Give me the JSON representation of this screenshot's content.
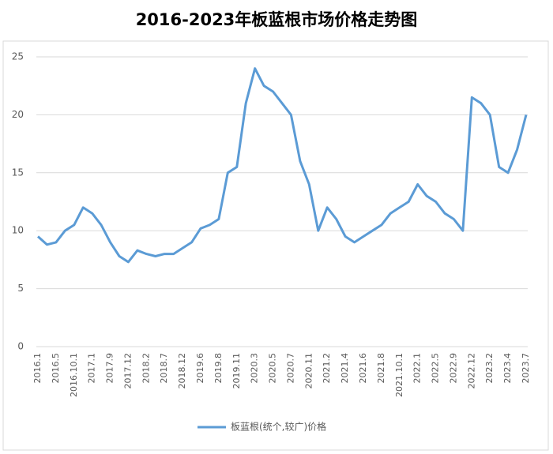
{
  "chart_data": {
    "type": "line",
    "title": "2016-2023年板蓝根市场价格走势图",
    "categories": [
      "2016.1",
      null,
      "2016.5",
      null,
      "2016.10.1",
      null,
      "2017.1",
      null,
      "2017.9",
      null,
      "2017.12",
      null,
      "2018.2",
      null,
      "2018.7",
      null,
      "2018.12",
      null,
      "2019.6",
      null,
      "2019.8",
      null,
      "2019.11",
      null,
      "2020.3",
      null,
      "2020.5",
      null,
      "2020.7",
      null,
      "2020.11",
      null,
      "2021.2",
      null,
      "2021.4",
      null,
      "2021.6",
      null,
      "2021.8",
      null,
      "2021.10.1",
      null,
      "2022.1",
      null,
      "2022.5",
      null,
      "2022.9",
      null,
      "2022.12",
      null,
      "2023.2",
      null,
      "2023.4",
      null,
      "2023.7"
    ],
    "series": [
      {
        "name": "板蓝根(统个,较广)价格",
        "color": "#5b9bd5",
        "values": [
          9.5,
          8.8,
          9.0,
          10.0,
          10.5,
          12.0,
          11.5,
          10.5,
          9.0,
          7.8,
          7.3,
          8.3,
          8.0,
          7.8,
          8.0,
          8.0,
          8.5,
          9.0,
          10.2,
          10.5,
          11.0,
          15.0,
          15.5,
          21.0,
          24.0,
          22.5,
          22.0,
          21.0,
          20.0,
          16.0,
          14.0,
          10.0,
          12.0,
          11.0,
          9.5,
          9.0,
          9.5,
          10.0,
          10.5,
          11.5,
          12.0,
          12.5,
          14.0,
          13.0,
          12.5,
          11.5,
          11.0,
          10.0,
          21.5,
          21.0,
          20.0,
          15.5,
          15.0,
          17.0,
          20.0
        ]
      }
    ],
    "ylim": [
      0,
      25
    ],
    "yticks": [
      0,
      5,
      10,
      15,
      20,
      25
    ],
    "grid": true,
    "legend": "bottom"
  }
}
